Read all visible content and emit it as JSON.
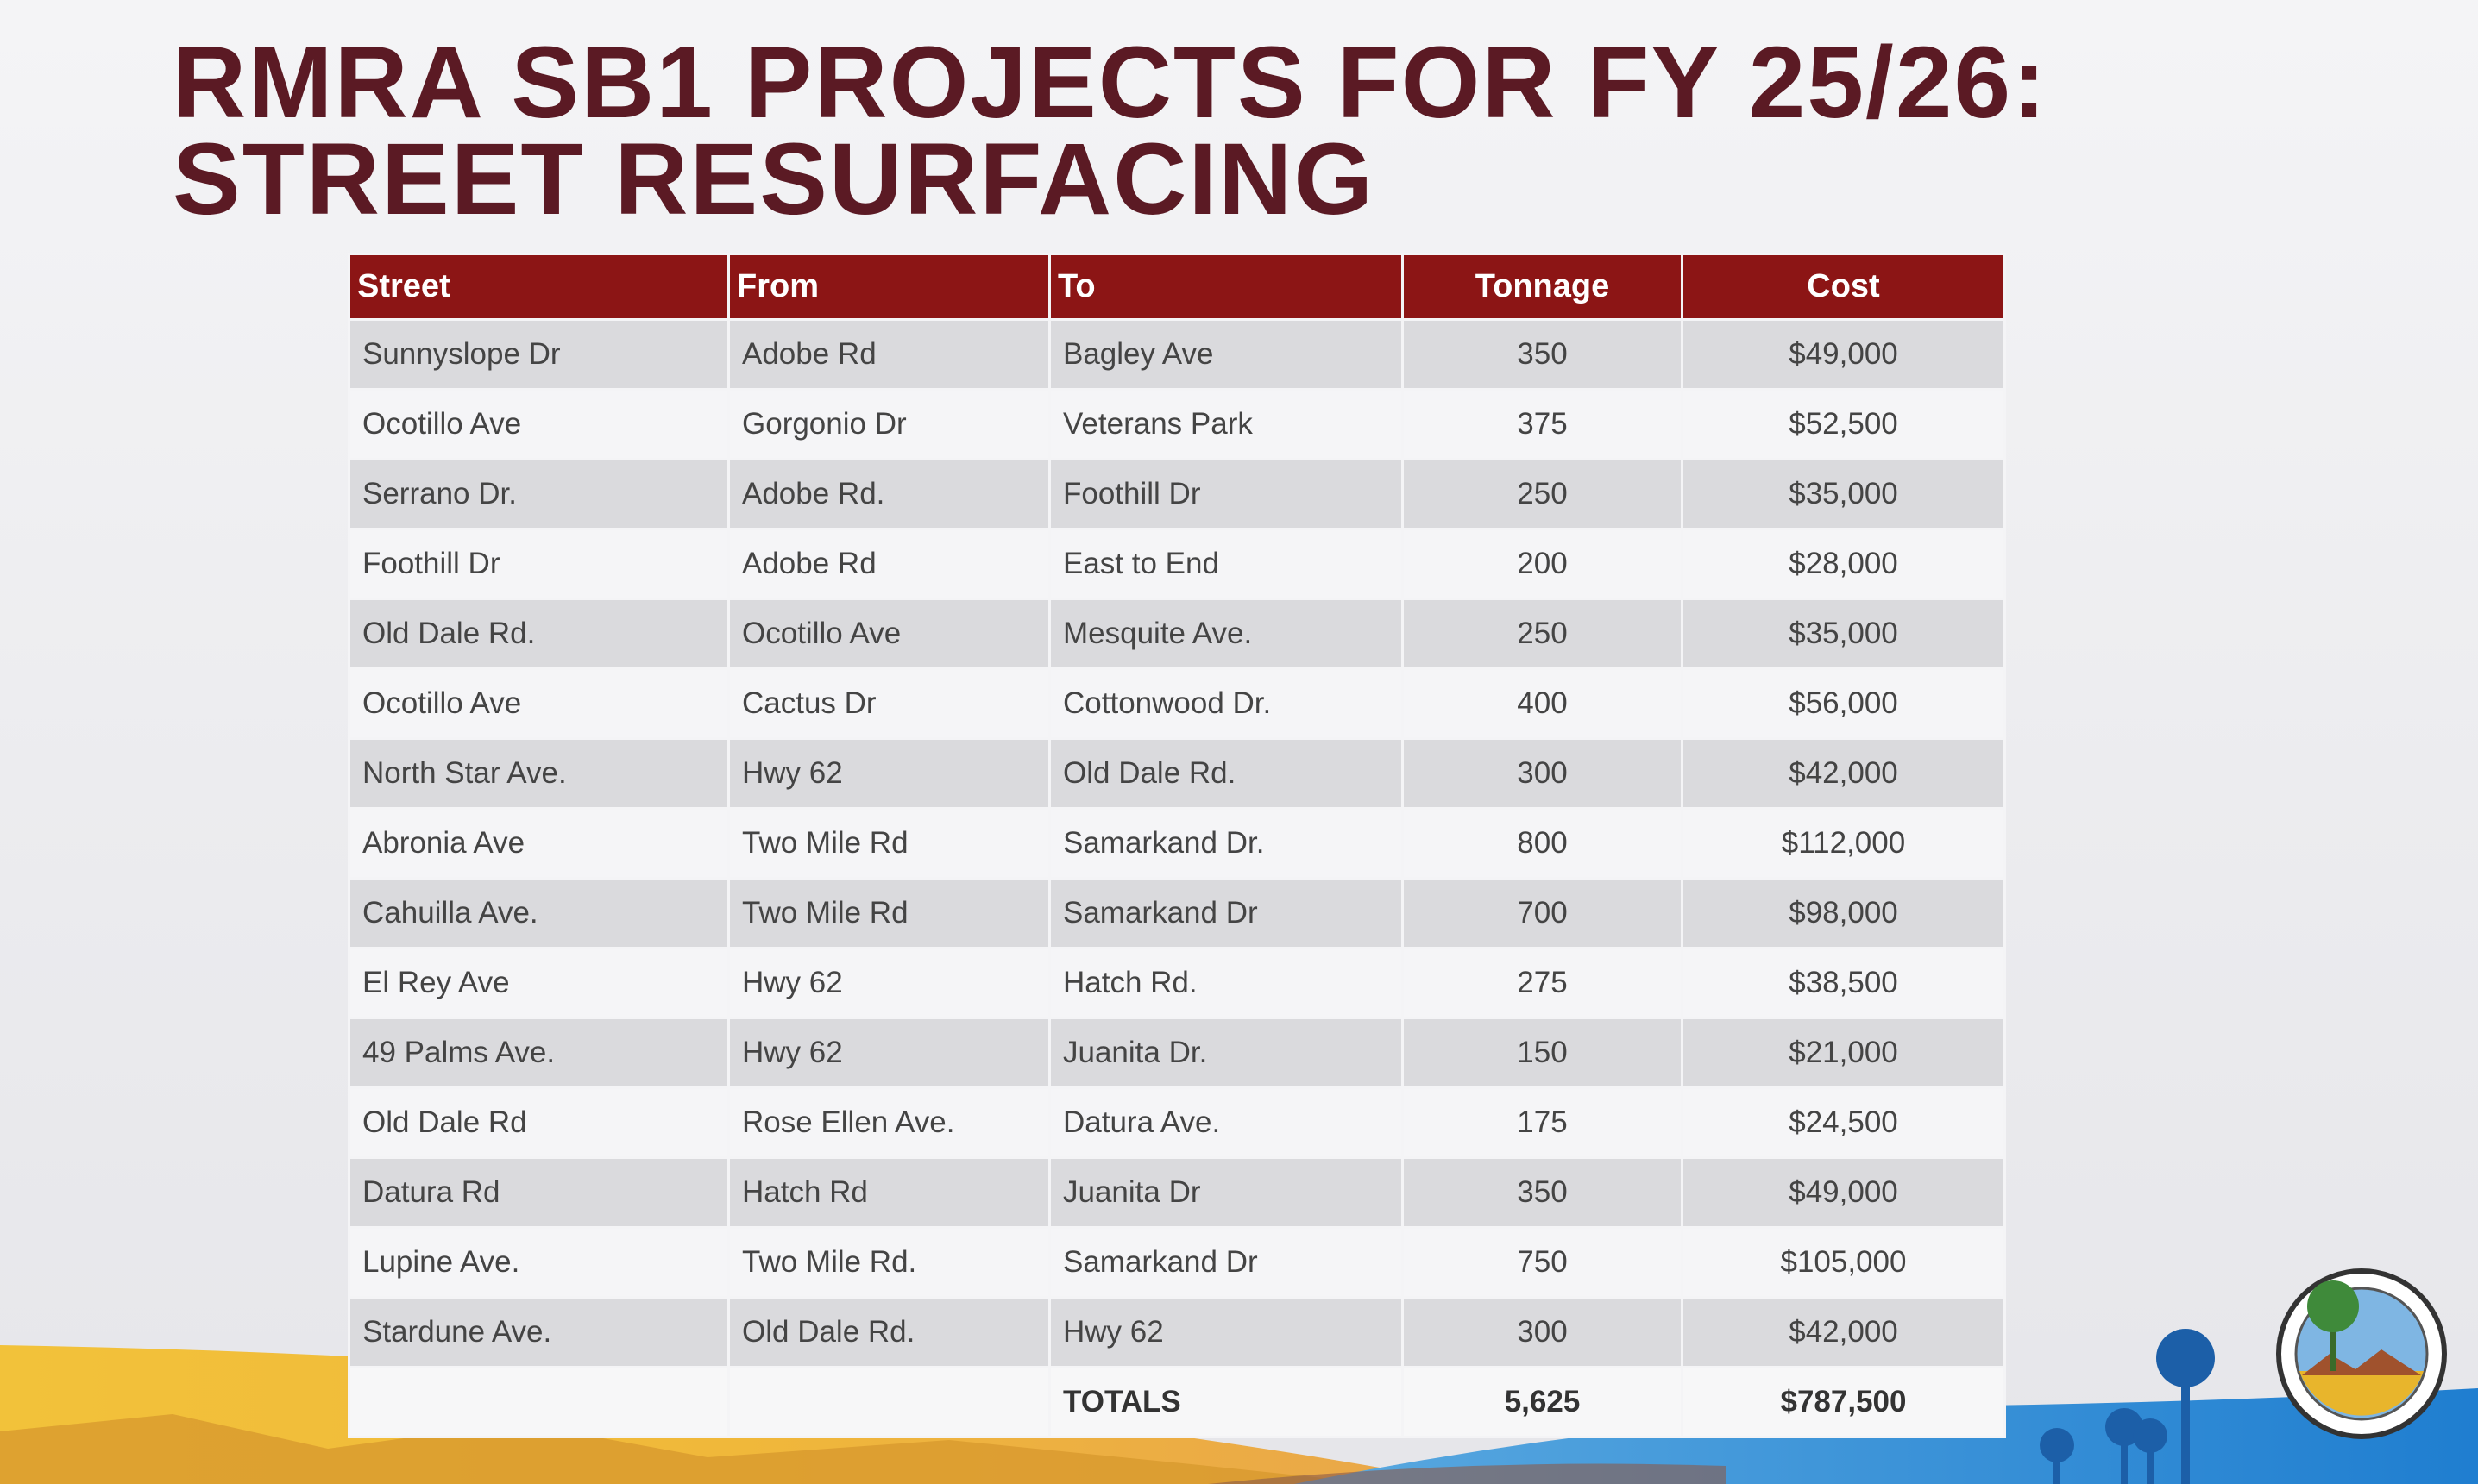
{
  "header": {
    "title": "RMRA SB1 PROJECTS FOR FY 25/26: STREET RESURFACING"
  },
  "table": {
    "columns": [
      "Street",
      "From",
      "To",
      "Tonnage",
      "Cost"
    ],
    "rows": [
      [
        "Sunnyslope Dr",
        "Adobe Rd",
        "Bagley Ave",
        "350",
        "$49,000"
      ],
      [
        "Ocotillo Ave",
        "Gorgonio Dr",
        "Veterans Park",
        "375",
        "$52,500"
      ],
      [
        "Serrano Dr.",
        "Adobe Rd.",
        "Foothill Dr",
        "250",
        "$35,000"
      ],
      [
        "Foothill Dr",
        "Adobe Rd",
        "East to End",
        "200",
        "$28,000"
      ],
      [
        "Old Dale Rd.",
        "Ocotillo Ave",
        "Mesquite Ave.",
        "250",
        "$35,000"
      ],
      [
        "Ocotillo Ave",
        "Cactus Dr",
        "Cottonwood Dr.",
        "400",
        "$56,000"
      ],
      [
        "North Star Ave.",
        "Hwy 62",
        "Old Dale Rd.",
        "300",
        "$42,000"
      ],
      [
        "Abronia Ave",
        "Two Mile Rd",
        "Samarkand Dr.",
        "800",
        "$112,000"
      ],
      [
        "Cahuilla Ave.",
        "Two Mile Rd",
        "Samarkand Dr",
        "700",
        "$98,000"
      ],
      [
        "El Rey Ave",
        "Hwy 62",
        "Hatch Rd.",
        "275",
        "$38,500"
      ],
      [
        "49 Palms Ave.",
        "Hwy 62",
        "Juanita Dr.",
        "150",
        "$21,000"
      ],
      [
        "Old Dale Rd",
        "Rose Ellen Ave.",
        "Datura Ave.",
        "175",
        "$24,500"
      ],
      [
        "Datura Rd",
        "Hatch Rd",
        "Juanita Dr",
        "350",
        "$49,000"
      ],
      [
        "Lupine Ave.",
        "Two Mile Rd.",
        "Samarkand Dr",
        "750",
        "$105,000"
      ],
      [
        "Stardune Ave.",
        "Old Dale Rd.",
        "Hwy 62",
        "300",
        "$42,000"
      ]
    ],
    "totals": {
      "label": "TOTALS",
      "tonnage": "5,625",
      "cost": "$787,500"
    }
  }
}
